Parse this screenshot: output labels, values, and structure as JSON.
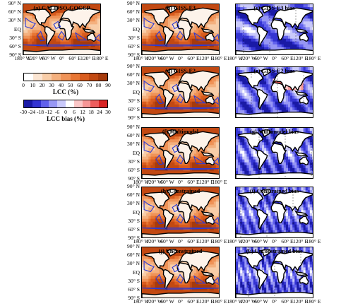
{
  "panels": [
    {
      "id": "a",
      "title": "(a) CALIPSO-GOCCP",
      "kind": "lcc"
    },
    {
      "id": "b",
      "title": "(b) GISS-E3",
      "kind": "lcc"
    },
    {
      "id": "c",
      "title": "(c) GISS-E3 bias",
      "kind": "bias"
    },
    {
      "id": "d",
      "title": "(d) GISS-E2",
      "kind": "lcc"
    },
    {
      "id": "e",
      "title": "(e) GISS-E2 bias",
      "kind": "bias"
    },
    {
      "id": "f",
      "title": "(f) Multimodel",
      "kind": "lcc"
    },
    {
      "id": "g",
      "title": "(g) Multimodel bias",
      "kind": "bias"
    },
    {
      "id": "h",
      "title": "(h) Constrained",
      "kind": "lcc"
    },
    {
      "id": "i",
      "title": "(i) Constrained bias",
      "kind": "bias"
    },
    {
      "id": "j",
      "title": "(j) Unconstrained",
      "kind": "lcc"
    },
    {
      "id": "k",
      "title": "(k) Unconstrained bias",
      "kind": "bias"
    }
  ],
  "lat_labels": [
    "90° N",
    "60° N",
    "30° N",
    "EQ",
    "30° S",
    "60° S",
    "90° S"
  ],
  "lon_labels": [
    "180° W",
    "120° W",
    "60° W",
    "0°",
    "60° E",
    "120° E",
    "180° E"
  ],
  "colorbars": {
    "lcc": {
      "label": "LCC (%)",
      "ticks": [
        "0",
        "10",
        "20",
        "30",
        "40",
        "50",
        "60",
        "70",
        "80",
        "90"
      ],
      "colors": [
        "#ffffff",
        "#fbe5d2",
        "#f8cda8",
        "#f4b07e",
        "#ef9358",
        "#e87634",
        "#d95c1e",
        "#c24912",
        "#a63a0c"
      ]
    },
    "bias": {
      "label": "LCC bias (%)",
      "ticks": [
        "-30",
        "-24",
        "-18",
        "-12",
        "-6",
        "0",
        "6",
        "12",
        "18",
        "24",
        "30"
      ],
      "colors": [
        "#1a1aa6",
        "#3434d2",
        "#6161ec",
        "#9797f4",
        "#c9c9fa",
        "#ffffff",
        "#fbc7c7",
        "#f69696",
        "#ee5e5e",
        "#d92424"
      ]
    }
  }
}
